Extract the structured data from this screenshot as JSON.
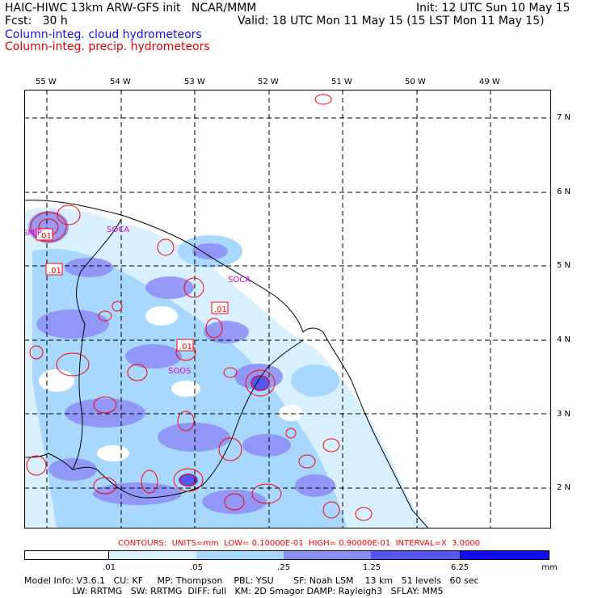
{
  "header": {
    "line1_left": "HAIC-HIWC 13km ARW-GFS init   NCAR/MMM",
    "line1_right": "Init: 12 UTC Sun 10 May 15",
    "line2_left": "Fcst:   30 h",
    "line2_right": "Valid: 18 UTC Mon 11 May 15 (15 LST Mon 11 May 15)",
    "field1": "Column-integ. cloud hydrometeors",
    "field2": "Column-integ. precip. hydrometeors",
    "field1_color": "#0000ff",
    "field2_color": "#ff0000"
  },
  "map": {
    "lon_labels": [
      "55 W",
      "54 W",
      "53 W",
      "52 W",
      "51 W",
      "50 W",
      "49 W"
    ],
    "lat_labels": [
      "7 N",
      "6 N",
      "5 N",
      "4 N",
      "3 N",
      "2 N"
    ],
    "station_labels": [
      "SMJP",
      "SOCA",
      "SOOS",
      "SOCA"
    ],
    "contour_labels": [
      ".01",
      ".01",
      ".01",
      ".01"
    ],
    "station_color": "#dd00dd",
    "contour_color": "#ff0000"
  },
  "contours_text": "CONTOURS:  UNITS=mm  LOW= 0.10000E-01  HIGH= 0.90000E-01  INTERVAL=X  3.0000",
  "colorbar": {
    "labels": [
      ".01",
      ".05",
      ".25",
      "1.25",
      "6.25",
      "mm"
    ],
    "colors": [
      "#ffffff",
      "#d8f0ff",
      "#a9d8ff",
      "#8c8cf5",
      "#5656f0",
      "#1010ee"
    ]
  },
  "footer": {
    "line1": "Model Info: V3.6.1   CU: KF     MP: Thompson    PBL: YSU       SF: Noah LSM    13 km   51 levels   60 sec",
    "line2": "                 LW: RRTMG   SW: RRTMG  DIFF: full   KM: 2D Smagor DAMP: Rayleigh3   SFLAY: MM5"
  }
}
